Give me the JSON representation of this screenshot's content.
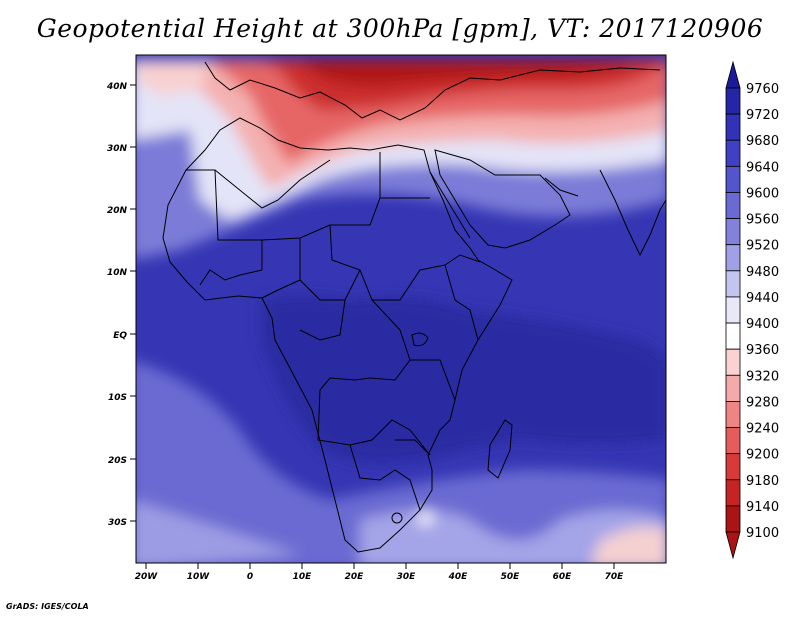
{
  "title": "Geopotential Height at 300hPa [gpm], VT: 2017120906",
  "credit": "GrADS: IGES/COLA",
  "lat_labels": [
    "40N",
    "30N",
    "20N",
    "10N",
    "EQ",
    "10S",
    "20S",
    "30S"
  ],
  "lon_labels": [
    "20W",
    "10W",
    "0",
    "10E",
    "20E",
    "30E",
    "40E",
    "50E",
    "60E",
    "70E"
  ],
  "colorbar": {
    "levels": [
      "9760",
      "9720",
      "9680",
      "9640",
      "9600",
      "9560",
      "9520",
      "9480",
      "9440",
      "9400",
      "9360",
      "9320",
      "9280",
      "9240",
      "9200",
      "9180",
      "9140",
      "9100"
    ],
    "colors": [
      "#1a1a9a",
      "#2525a8",
      "#3232b8",
      "#4040c4",
      "#5454cc",
      "#6a6ad4",
      "#8282dc",
      "#a0a0e6",
      "#c4c4f0",
      "#e8e8f8",
      "#ffffff",
      "#fad2d2",
      "#f4aaaa",
      "#ee8484",
      "#e45c5c",
      "#d83a3a",
      "#c62424",
      "#aa1414"
    ]
  },
  "colors": {
    "deep_blue": "#3030b0",
    "mid_blue": "#5a5ad0",
    "light_blue": "#9090e0",
    "white": "#ffffff",
    "light_red": "#f4aaaa",
    "deep_red": "#b81e1e"
  }
}
